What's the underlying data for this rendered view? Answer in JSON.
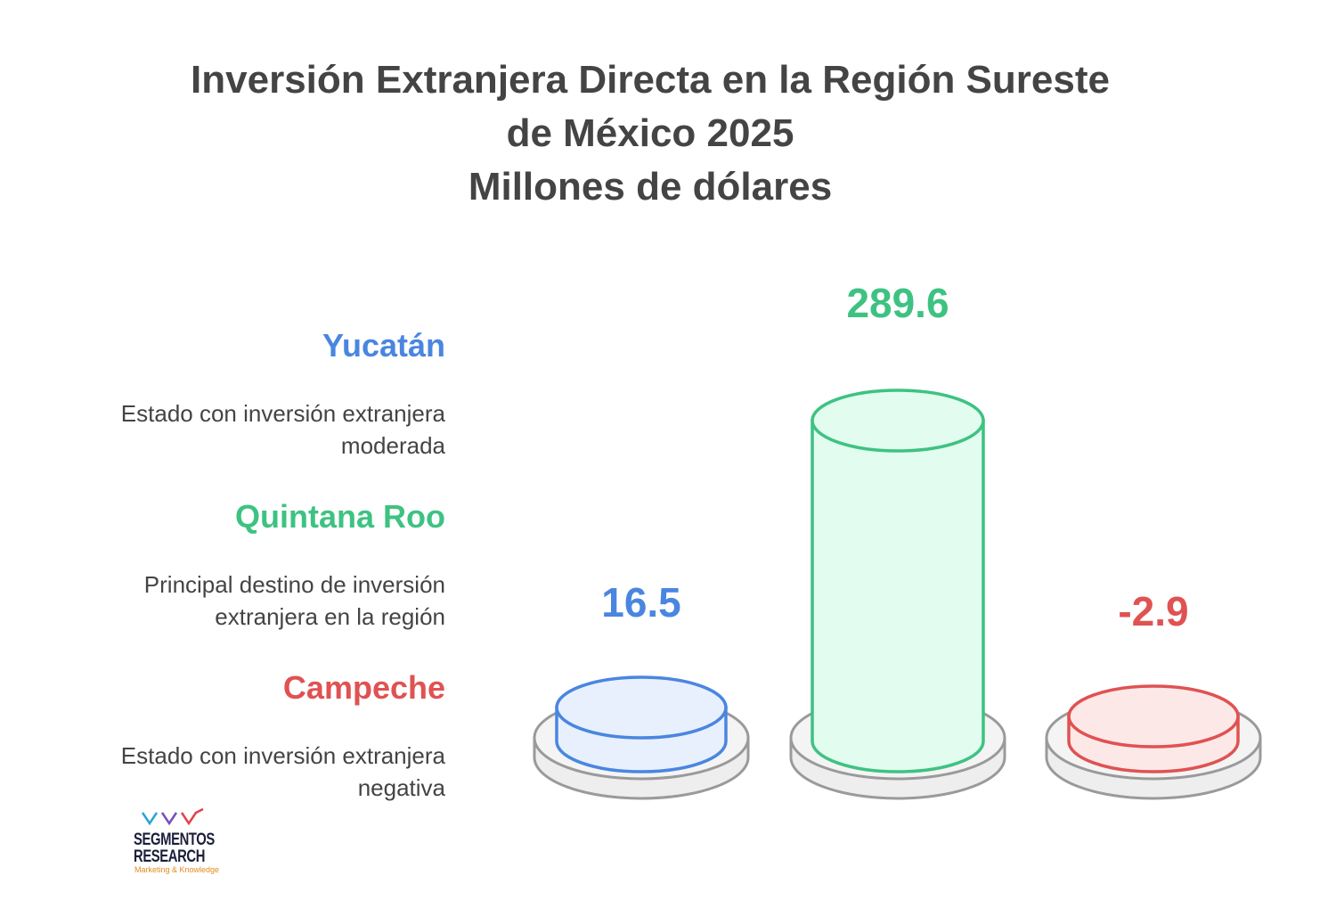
{
  "title": {
    "line1": "Inversión Extranjera Directa en la Región Sureste",
    "line2": "de México 2025",
    "line3": "Millones de dólares"
  },
  "legend": [
    {
      "name": "Yucatán",
      "description": "Estado con inversión extranjera\nmoderada",
      "color": "#4a86e0"
    },
    {
      "name": "Quintana Roo",
      "description": "Principal destino de inversión\nextranjera en la región",
      "color": "#3ec282"
    },
    {
      "name": "Campeche",
      "description": "Estado con inversión extranjera\nnegativa",
      "color": "#e05252"
    }
  ],
  "chart_data": {
    "type": "bar",
    "title": "Inversión Extranjera Directa en la Región Sureste de México 2025",
    "ylabel": "Millones de dólares",
    "categories": [
      "Yucatán",
      "Quintana Roo",
      "Campeche"
    ],
    "values": [
      16.5,
      289.6,
      -2.9
    ],
    "value_labels": [
      "16.5",
      "289.6",
      "-2.9"
    ],
    "colors": [
      "#4a86e0",
      "#3ec282",
      "#e05252"
    ],
    "fills": [
      "#e8f0fd",
      "#e2fcef",
      "#fde8e8"
    ],
    "style": "3d-cylinders"
  },
  "logo": {
    "line1": "SEGMENTOS",
    "line2": "RESEARCH",
    "tagline": "Marketing & Knowledge"
  }
}
